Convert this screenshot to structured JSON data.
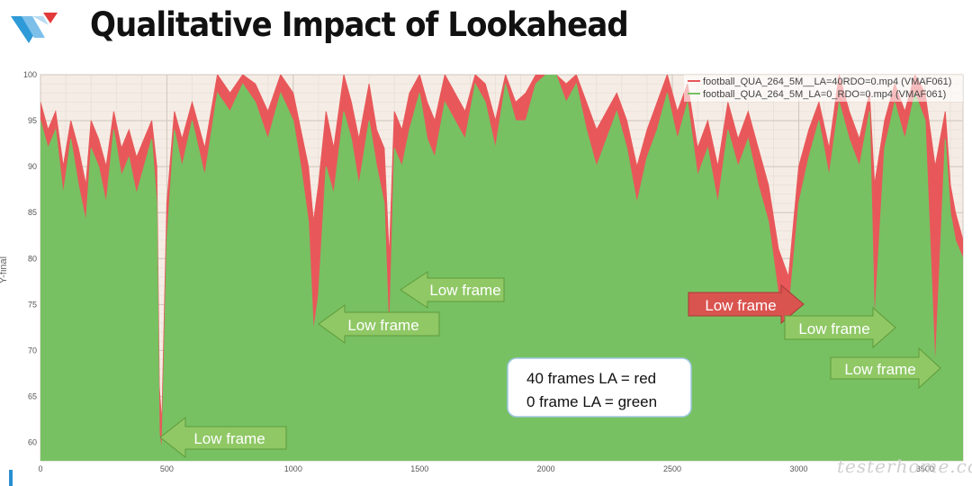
{
  "title": "Qualitative Impact of Lookahead",
  "watermark": "testerhome.com",
  "colors": {
    "red_series": "#e8585a",
    "green_series": "#77c163",
    "plot_bg": "#f5ede5",
    "grid": "#d8cfc8",
    "red_arrow": "#d9534f",
    "green_arrow": "#8fc865",
    "logo_blue": "#2e9ad8",
    "logo_red": "#e23a3a"
  },
  "legend": {
    "entries": [
      {
        "label": "football_QUA_264_5M__LA=40RDO=0.mp4 (VMAF061)",
        "color": "#e8585a"
      },
      {
        "label": "football_QUA_264_5M_LA=0_RDO=0.mp4 (VMAF061)",
        "color": "#77c163"
      }
    ]
  },
  "note": {
    "line1": "40 frames LA = red",
    "line2": "0 frame LA = green"
  },
  "chart_data": {
    "type": "area",
    "xlim": [
      0,
      3650
    ],
    "ylim": [
      58,
      100
    ],
    "x_ticks": [
      0,
      500,
      1000,
      1500,
      2000,
      2500,
      3000,
      3500
    ],
    "y_ticks": [
      60,
      65,
      70,
      75,
      80,
      85,
      90,
      95,
      100
    ],
    "ylabel": "Y-final",
    "series": [
      {
        "name": "football_QUA_264_5M__LA=40RDO=0.mp4 (VMAF061)",
        "color": "#e8585a",
        "x": [
          0,
          30,
          60,
          90,
          120,
          150,
          180,
          200,
          230,
          260,
          290,
          320,
          350,
          380,
          410,
          440,
          460,
          470,
          480,
          500,
          530,
          560,
          600,
          650,
          700,
          750,
          800,
          850,
          900,
          950,
          1000,
          1030,
          1060,
          1080,
          1100,
          1130,
          1160,
          1200,
          1230,
          1260,
          1300,
          1330,
          1360,
          1380,
          1400,
          1430,
          1460,
          1500,
          1530,
          1560,
          1600,
          1640,
          1680,
          1720,
          1760,
          1800,
          1840,
          1880,
          1920,
          1960,
          2000,
          2040,
          2080,
          2120,
          2160,
          2200,
          2240,
          2280,
          2320,
          2360,
          2400,
          2440,
          2480,
          2520,
          2560,
          2600,
          2640,
          2680,
          2720,
          2760,
          2800,
          2840,
          2880,
          2920,
          2960,
          3000,
          3040,
          3080,
          3120,
          3160,
          3200,
          3240,
          3280,
          3300,
          3340,
          3380,
          3420,
          3460,
          3500,
          3540,
          3580,
          3600,
          3620,
          3650
        ],
        "values": [
          97,
          94,
          96,
          90,
          95,
          92,
          88,
          95,
          93,
          90,
          96,
          92,
          94,
          91,
          93,
          95,
          90,
          66,
          62,
          86,
          96,
          93,
          97,
          92,
          100,
          98,
          100,
          99,
          96,
          100,
          98,
          94,
          90,
          84,
          88,
          96,
          92,
          100,
          97,
          93,
          99,
          94,
          92,
          80,
          96,
          94,
          98,
          100,
          97,
          95,
          100,
          98,
          96,
          100,
          99,
          95,
          100,
          97,
          98,
          100,
          100,
          100,
          99,
          100,
          97,
          94,
          96,
          98,
          95,
          90,
          94,
          97,
          100,
          96,
          99,
          92,
          95,
          90,
          97,
          93,
          96,
          92,
          88,
          81,
          78,
          90,
          94,
          97,
          92,
          100,
          96,
          93,
          98,
          88,
          95,
          99,
          96,
          100,
          98,
          90,
          96,
          88,
          85,
          82
        ]
      },
      {
        "name": "football_QUA_264_5M_LA=0_RDO=0.mp4 (VMAF061)",
        "color": "#77c163",
        "x": [
          0,
          30,
          60,
          90,
          120,
          150,
          180,
          200,
          230,
          260,
          290,
          320,
          350,
          380,
          410,
          440,
          460,
          470,
          480,
          500,
          530,
          560,
          600,
          650,
          700,
          750,
          800,
          850,
          900,
          950,
          1000,
          1030,
          1060,
          1080,
          1100,
          1130,
          1160,
          1200,
          1230,
          1260,
          1300,
          1330,
          1360,
          1380,
          1400,
          1430,
          1460,
          1500,
          1530,
          1560,
          1600,
          1640,
          1680,
          1720,
          1760,
          1800,
          1840,
          1880,
          1920,
          1960,
          2000,
          2040,
          2080,
          2120,
          2160,
          2200,
          2240,
          2280,
          2320,
          2360,
          2400,
          2440,
          2480,
          2520,
          2560,
          2600,
          2640,
          2680,
          2720,
          2760,
          2800,
          2840,
          2880,
          2920,
          2960,
          3000,
          3040,
          3080,
          3120,
          3160,
          3200,
          3240,
          3280,
          3300,
          3340,
          3380,
          3420,
          3460,
          3500,
          3540,
          3580,
          3600,
          3620,
          3650
        ],
        "values": [
          95,
          92,
          94,
          87,
          93,
          88,
          84,
          92,
          90,
          86,
          94,
          89,
          91,
          87,
          90,
          93,
          86,
          61,
          59,
          82,
          94,
          90,
          95,
          89,
          98,
          96,
          99,
          97,
          93,
          98,
          95,
          90,
          84,
          72,
          76,
          90,
          87,
          96,
          93,
          88,
          95,
          90,
          86,
          71,
          92,
          90,
          94,
          98,
          93,
          91,
          97,
          95,
          93,
          99,
          97,
          92,
          99,
          95,
          95,
          99,
          100,
          100,
          97,
          99,
          94,
          90,
          93,
          96,
          92,
          86,
          91,
          94,
          98,
          93,
          97,
          89,
          92,
          86,
          94,
          90,
          93,
          88,
          84,
          76,
          74,
          86,
          91,
          95,
          89,
          97,
          93,
          90,
          96,
          73,
          92,
          97,
          93,
          98,
          95,
          68,
          93,
          85,
          82,
          80
        ]
      }
    ],
    "annotations": [
      {
        "text": "Low frame",
        "color": "#8fc865",
        "direction": "left"
      },
      {
        "text": "Low frame",
        "color": "#8fc865",
        "direction": "left"
      },
      {
        "text": "Low frame",
        "color": "#8fc865",
        "direction": "left"
      },
      {
        "text": "Low frame",
        "color": "#d9534f",
        "direction": "right"
      },
      {
        "text": "Low frame",
        "color": "#8fc865",
        "direction": "right"
      },
      {
        "text": "Low frame",
        "color": "#8fc865",
        "direction": "right"
      }
    ]
  }
}
